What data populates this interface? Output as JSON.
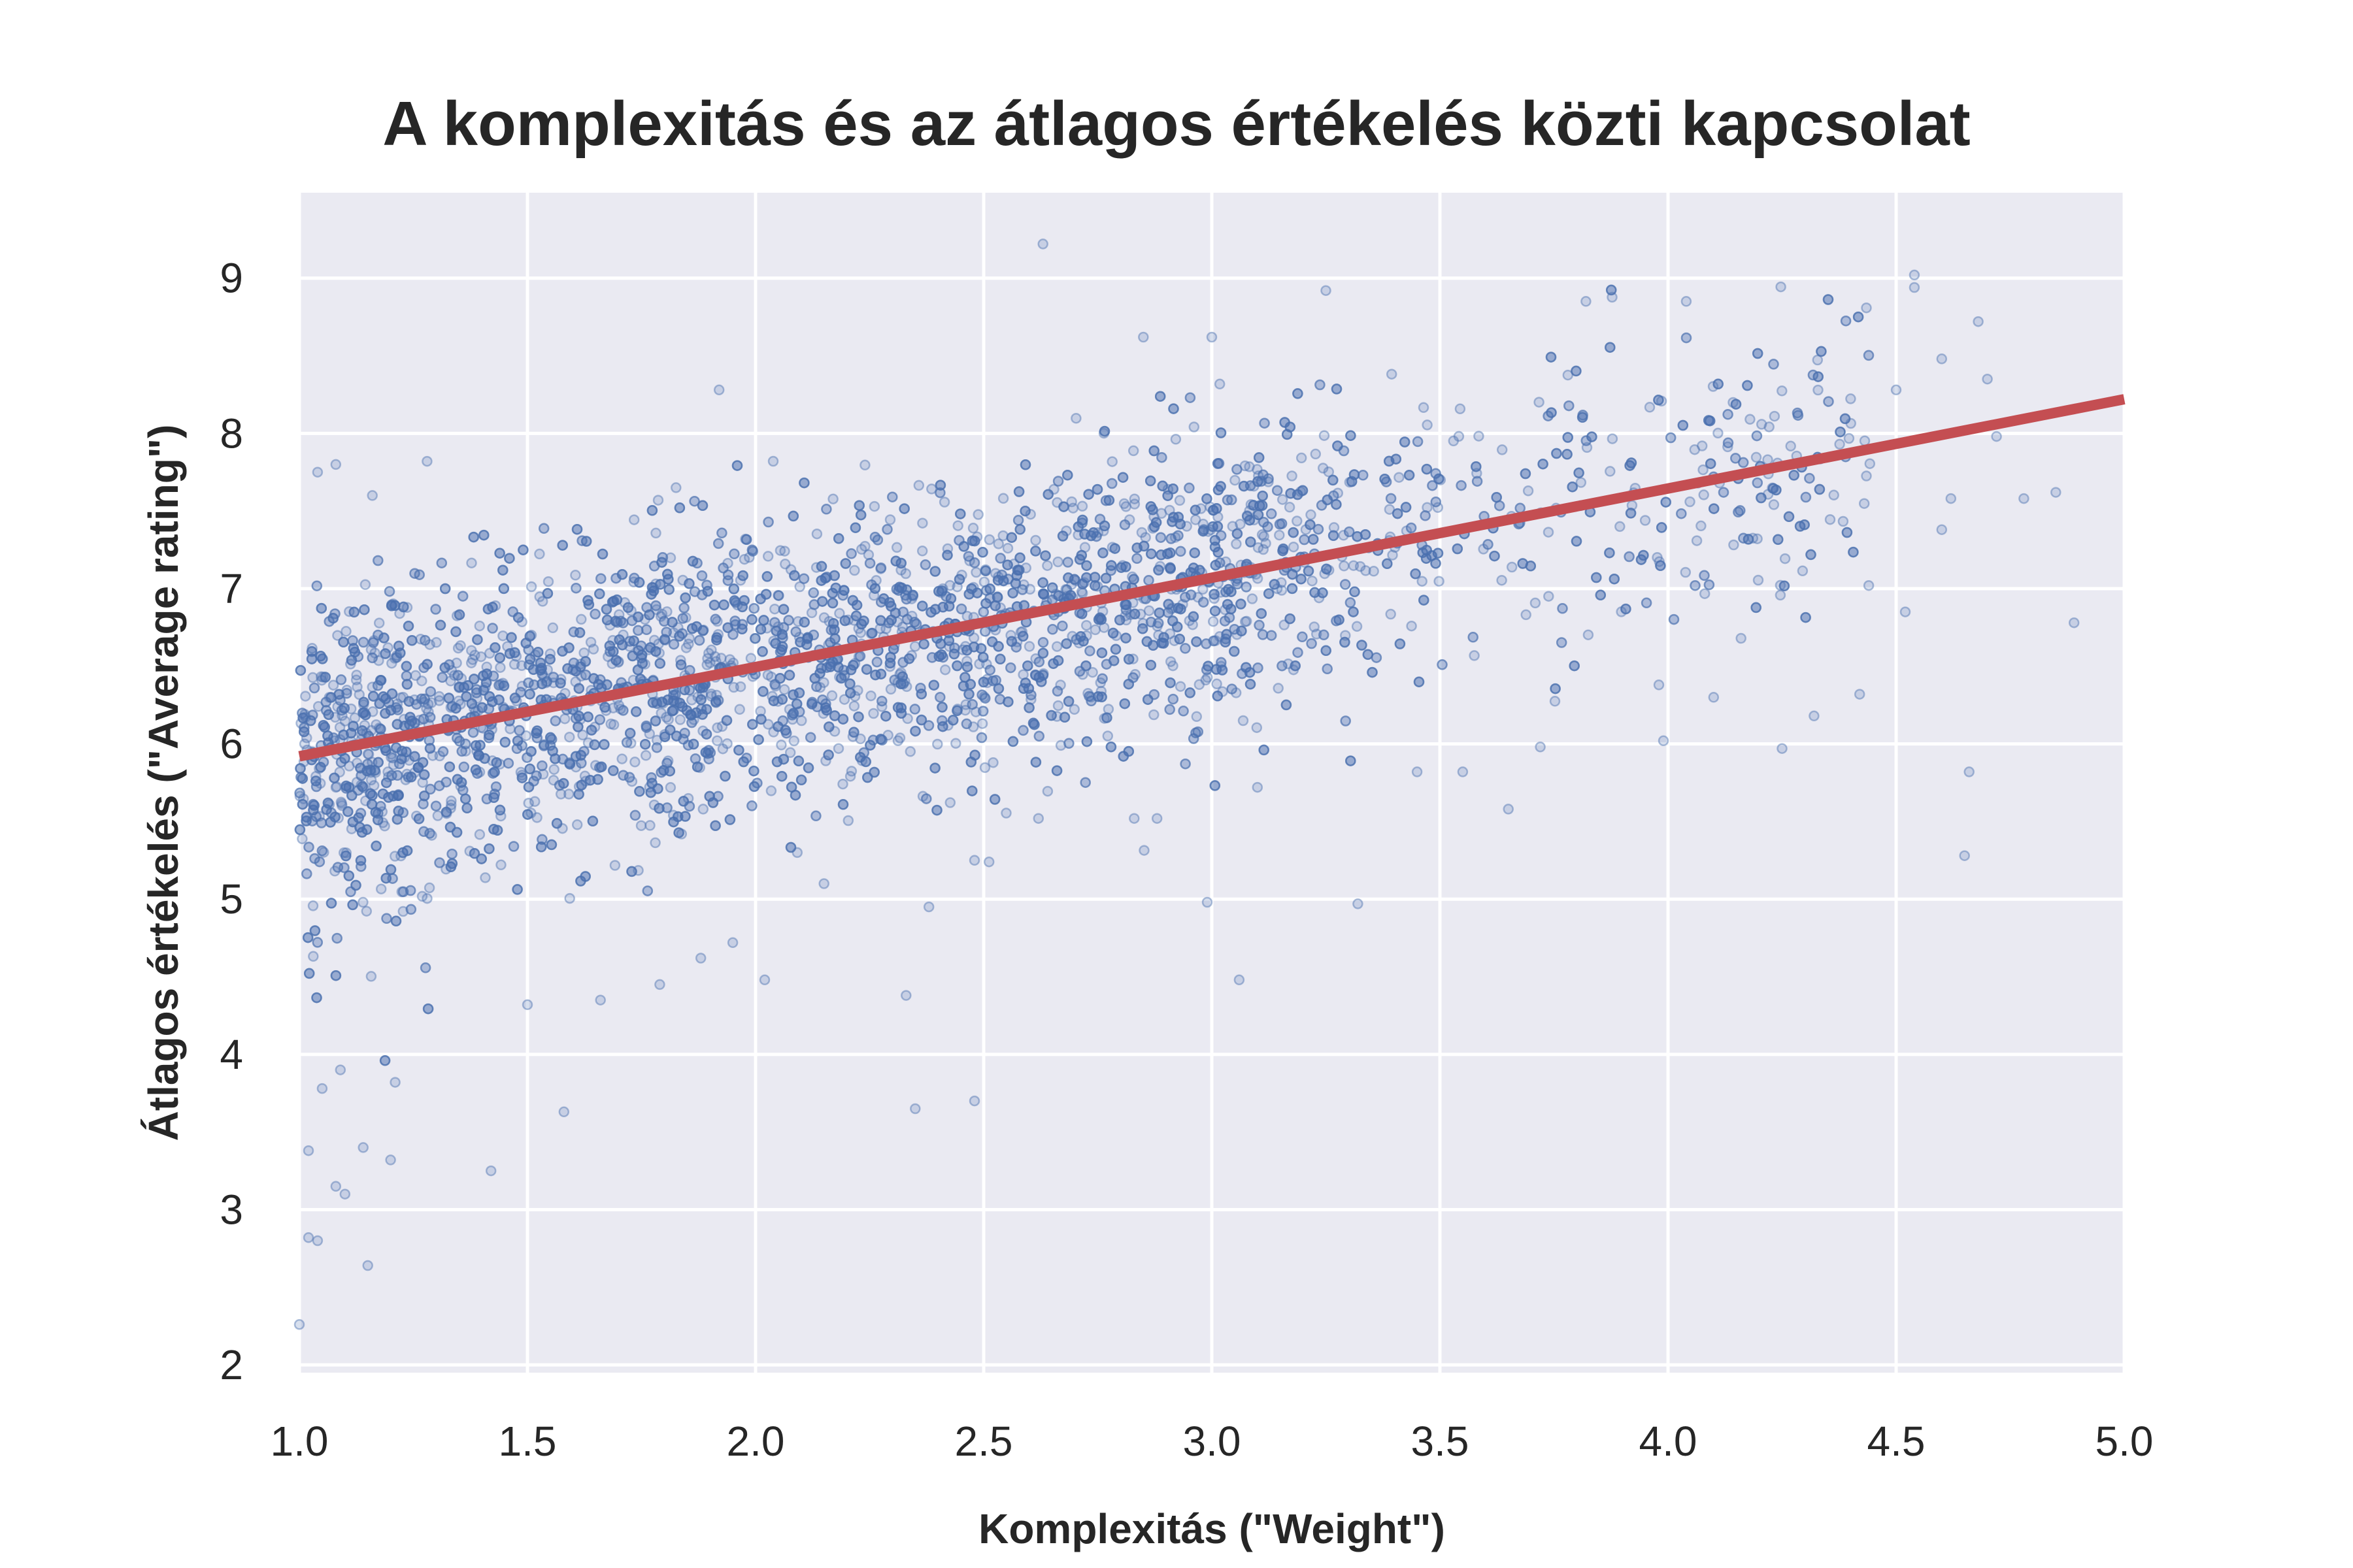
{
  "chart_data": {
    "type": "scatter",
    "title": "A komplexitás és az átlagos értékelés közti kapcsolat",
    "xlabel": "Komplexitás (\"Weight\")",
    "ylabel": "Átlagos értékelés (\"Average rating\")",
    "xlim": [
      1.0,
      5.0
    ],
    "ylim": [
      1.95,
      9.55
    ],
    "x_ticks": [
      "1.0",
      "1.5",
      "2.0",
      "2.5",
      "3.0",
      "3.5",
      "4.0",
      "4.5",
      "5.0"
    ],
    "y_ticks": [
      "2",
      "3",
      "4",
      "5",
      "6",
      "7",
      "8",
      "9"
    ],
    "grid": true,
    "legend": "none",
    "colors": {
      "background": "#eaeaf2",
      "grid": "#ffffff",
      "points": "#4c72b0",
      "trend_line": "#c44e52"
    },
    "trend_line": {
      "x": [
        1.0,
        5.0
      ],
      "y": [
        5.92,
        8.22
      ]
    },
    "point_cloud": {
      "approximate_count": 5000,
      "mean_trend": {
        "slope": 0.575,
        "intercept": 5.345
      },
      "spread_sd": 0.48
    },
    "outliers": [
      {
        "x": 2.63,
        "y": 9.22
      },
      {
        "x": 3.25,
        "y": 8.92
      },
      {
        "x": 4.54,
        "y": 9.02
      },
      {
        "x": 4.54,
        "y": 8.94
      },
      {
        "x": 4.89,
        "y": 6.78
      },
      {
        "x": 4.66,
        "y": 5.82
      },
      {
        "x": 4.65,
        "y": 5.28
      },
      {
        "x": 3.99,
        "y": 6.02
      },
      {
        "x": 4.25,
        "y": 5.97
      },
      {
        "x": 2.99,
        "y": 4.98
      },
      {
        "x": 3.32,
        "y": 4.97
      },
      {
        "x": 3.06,
        "y": 4.48
      },
      {
        "x": 2.33,
        "y": 4.38
      },
      {
        "x": 2.38,
        "y": 4.95
      },
      {
        "x": 2.35,
        "y": 3.65
      },
      {
        "x": 2.48,
        "y": 3.7
      },
      {
        "x": 1.58,
        "y": 3.63
      },
      {
        "x": 1.42,
        "y": 3.25
      },
      {
        "x": 1.15,
        "y": 2.64
      },
      {
        "x": 1.0,
        "y": 2.26
      },
      {
        "x": 1.02,
        "y": 2.82
      },
      {
        "x": 1.04,
        "y": 2.8
      },
      {
        "x": 1.08,
        "y": 3.15
      },
      {
        "x": 1.1,
        "y": 3.1
      },
      {
        "x": 1.2,
        "y": 3.32
      },
      {
        "x": 1.14,
        "y": 3.4
      },
      {
        "x": 1.02,
        "y": 3.38
      },
      {
        "x": 1.21,
        "y": 3.82
      },
      {
        "x": 1.05,
        "y": 3.78
      },
      {
        "x": 1.09,
        "y": 3.9
      },
      {
        "x": 1.5,
        "y": 4.32
      },
      {
        "x": 1.66,
        "y": 4.35
      },
      {
        "x": 1.79,
        "y": 4.45
      },
      {
        "x": 1.95,
        "y": 4.72
      },
      {
        "x": 2.02,
        "y": 4.48
      },
      {
        "x": 1.88,
        "y": 4.62
      },
      {
        "x": 2.48,
        "y": 5.25
      },
      {
        "x": 2.15,
        "y": 5.1
      },
      {
        "x": 3.65,
        "y": 5.58
      },
      {
        "x": 4.16,
        "y": 6.68
      },
      {
        "x": 4.42,
        "y": 6.32
      },
      {
        "x": 4.32,
        "y": 6.18
      },
      {
        "x": 4.52,
        "y": 6.85
      },
      {
        "x": 4.44,
        "y": 7.02
      },
      {
        "x": 4.78,
        "y": 7.58
      },
      {
        "x": 4.85,
        "y": 7.62
      },
      {
        "x": 4.68,
        "y": 8.72
      },
      {
        "x": 4.6,
        "y": 8.48
      },
      {
        "x": 4.04,
        "y": 8.85
      },
      {
        "x": 3.82,
        "y": 8.85
      },
      {
        "x": 2.85,
        "y": 8.62
      },
      {
        "x": 3.0,
        "y": 8.62
      },
      {
        "x": 1.92,
        "y": 8.28
      },
      {
        "x": 1.04,
        "y": 7.75
      },
      {
        "x": 1.08,
        "y": 7.8
      },
      {
        "x": 1.28,
        "y": 7.82
      },
      {
        "x": 1.16,
        "y": 7.6
      },
      {
        "x": 4.7,
        "y": 8.35
      },
      {
        "x": 4.72,
        "y": 7.98
      },
      {
        "x": 4.62,
        "y": 7.58
      },
      {
        "x": 4.5,
        "y": 8.28
      },
      {
        "x": 4.6,
        "y": 7.38
      },
      {
        "x": 4.1,
        "y": 6.3
      },
      {
        "x": 3.98,
        "y": 6.38
      },
      {
        "x": 3.72,
        "y": 5.98
      },
      {
        "x": 3.55,
        "y": 5.82
      },
      {
        "x": 3.45,
        "y": 5.82
      },
      {
        "x": 3.1,
        "y": 5.72
      },
      {
        "x": 2.83,
        "y": 5.52
      },
      {
        "x": 2.88,
        "y": 5.52
      },
      {
        "x": 2.62,
        "y": 5.52
      }
    ]
  }
}
